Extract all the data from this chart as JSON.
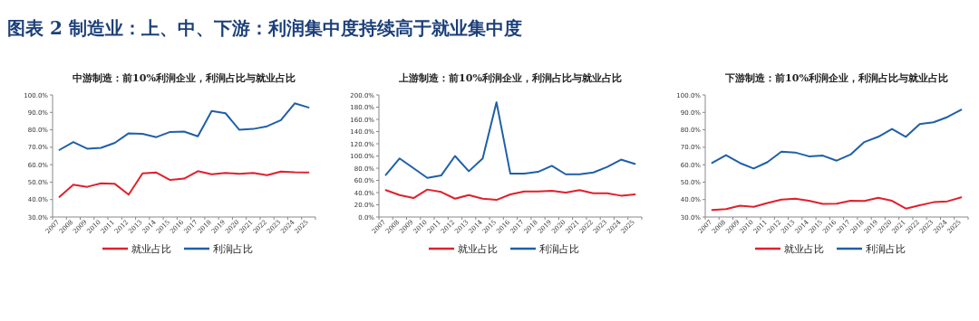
{
  "chart_data": [
    {
      "type": "line",
      "title": "中游制造：前10%利润企业，利润占比与就业占比",
      "annotations": [
        "图表 2 制造业：上、中、下游：利润集中度持续高于就业集中度"
      ],
      "categories": [
        "2007",
        "2008",
        "2009",
        "2010",
        "2011",
        "2012",
        "2013",
        "2014",
        "2015",
        "2016",
        "2017",
        "2018",
        "2019",
        "2020",
        "2021",
        "2022",
        "2023",
        "2024",
        "2025"
      ],
      "series": [
        {
          "name": "就业占比",
          "color": "#e0202c",
          "values": [
            41.5,
            48.5,
            47.3,
            49.3,
            49,
            42.8,
            55,
            55.5,
            51.2,
            52,
            56.3,
            54.5,
            55.3,
            54.7,
            55.3,
            54,
            56.1,
            55.7,
            55.5
          ]
        },
        {
          "name": "利润占比",
          "color": "#1f5fa8",
          "values": [
            68.5,
            73,
            69.2,
            69.7,
            72.5,
            78,
            77.7,
            75.8,
            78.8,
            79,
            76.3,
            90.8,
            89.5,
            80,
            80.5,
            82,
            85.5,
            95.2,
            92.8
          ]
        }
      ],
      "ylim": [
        30,
        100
      ],
      "yticks": [
        {
          "value": 30,
          "label": "30.0%"
        },
        {
          "value": 40,
          "label": "40.0%"
        },
        {
          "value": 50,
          "label": "50.0%"
        },
        {
          "value": 60,
          "label": "60.0%"
        },
        {
          "value": 70,
          "label": "70.0%"
        },
        {
          "value": 80,
          "label": "80.0%"
        },
        {
          "value": 90,
          "label": "90.0%"
        },
        {
          "value": 100,
          "label": "100.0%"
        }
      ],
      "grid": false,
      "legend": "bottom",
      "marker": "none",
      "line_style": "solid"
    },
    {
      "type": "line",
      "title": "上游制造：前10%利润企业，利润占比与就业占比",
      "categories": [
        "2007",
        "2008",
        "2009",
        "2010",
        "2011",
        "2012",
        "2013",
        "2014",
        "2015",
        "2016",
        "2017",
        "2018",
        "2019",
        "2020",
        "2021",
        "2022",
        "2023",
        "2024",
        "2025"
      ],
      "series": [
        {
          "name": "就业占比",
          "color": "#e0202c",
          "values": [
            44,
            36,
            31,
            45,
            41,
            30,
            36,
            30,
            28,
            37,
            42,
            42,
            43,
            40,
            44,
            39,
            39,
            35,
            37
          ]
        },
        {
          "name": "利润占比",
          "color": "#1f5fa8",
          "values": [
            69,
            96,
            80,
            64,
            68,
            100,
            75,
            96,
            188,
            71,
            71,
            74,
            84,
            70,
            70,
            73,
            82,
            94,
            87
          ]
        }
      ],
      "ylim": [
        0,
        200
      ],
      "yticks": [
        {
          "value": 0,
          "label": "0.0%"
        },
        {
          "value": 20,
          "label": "20.0%"
        },
        {
          "value": 40,
          "label": "40.0%"
        },
        {
          "value": 60,
          "label": "60.0%"
        },
        {
          "value": 80,
          "label": "80.0%"
        },
        {
          "value": 100,
          "label": "100.0%"
        },
        {
          "value": 120,
          "label": "120.0%"
        },
        {
          "value": 140,
          "label": "140.0%"
        },
        {
          "value": 160,
          "label": "160.0%"
        },
        {
          "value": 180,
          "label": "180.0%"
        },
        {
          "value": 200,
          "label": "200.0%"
        }
      ],
      "grid": false,
      "legend": "bottom",
      "marker": "none",
      "line_style": "solid"
    },
    {
      "type": "line",
      "title": "下游制造：前10%利润企业，利润占比与就业占比",
      "categories": [
        "2007",
        "2008",
        "2009",
        "2010",
        "2011",
        "2012",
        "2013",
        "2014",
        "2015",
        "2016",
        "2017",
        "2018",
        "2019",
        "2020",
        "2021",
        "2022",
        "2023",
        "2024",
        "2025"
      ],
      "series": [
        {
          "name": "就业占比",
          "color": "#e0202c",
          "values": [
            34,
            34.5,
            36.5,
            35.8,
            38,
            40,
            40.5,
            39.3,
            37.5,
            37.7,
            39.3,
            39.2,
            41,
            39.3,
            34.8,
            36.7,
            38.5,
            39,
            41.3
          ]
        },
        {
          "name": "利润占比",
          "color": "#1f5fa8",
          "values": [
            61,
            65.5,
            61,
            57.8,
            61.5,
            67.5,
            67,
            64.8,
            65.2,
            62.3,
            65.8,
            73,
            76,
            80.5,
            76,
            83.3,
            84.3,
            87.3,
            91.5
          ]
        }
      ],
      "ylim": [
        30,
        100
      ],
      "yticks": [
        {
          "value": 30,
          "label": "30.0%"
        },
        {
          "value": 40,
          "label": "40.0%"
        },
        {
          "value": 50,
          "label": "50.0%"
        },
        {
          "value": 60,
          "label": "60.0%"
        },
        {
          "value": 70,
          "label": "70.0%"
        },
        {
          "value": 80,
          "label": "80.0%"
        },
        {
          "value": 90,
          "label": "90.0%"
        },
        {
          "value": 100,
          "label": "100.0%"
        }
      ],
      "grid": false,
      "legend": "bottom",
      "marker": "none",
      "line_style": "solid"
    }
  ]
}
